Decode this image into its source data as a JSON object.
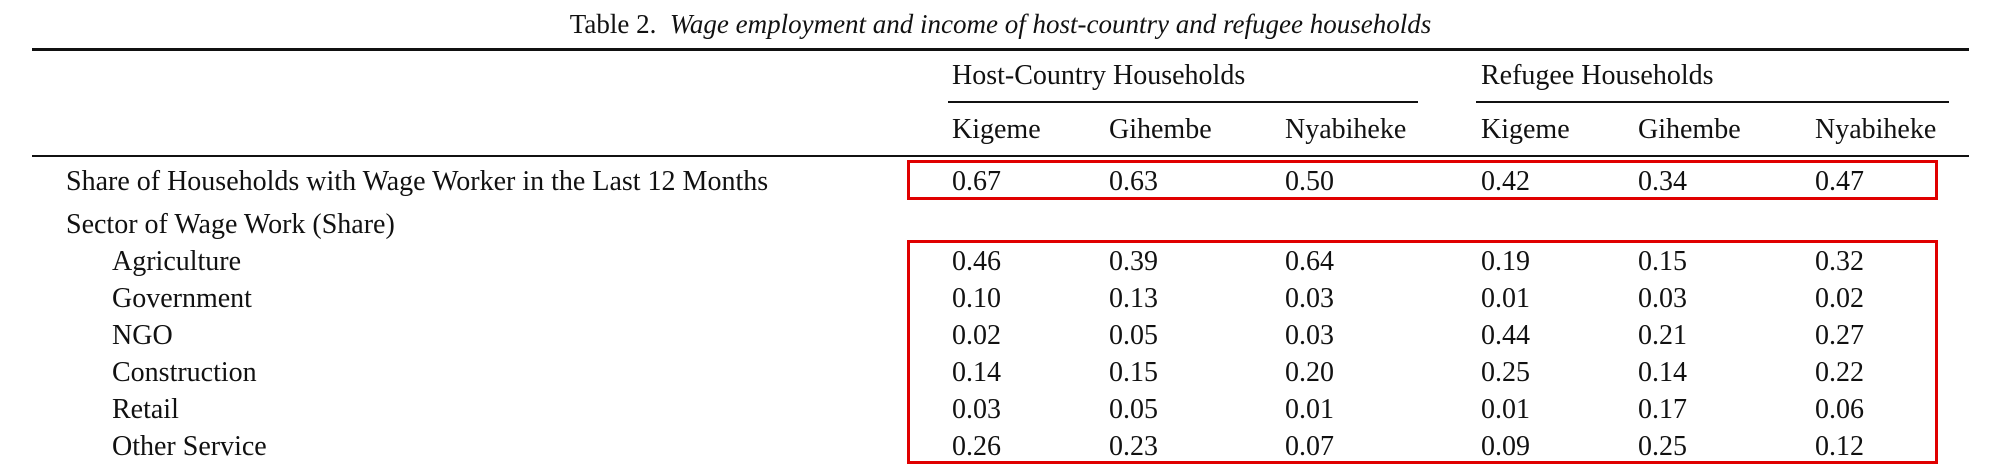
{
  "caption": {
    "label": "Table 2.",
    "title": "Wage employment and income of host-country and refugee households"
  },
  "table": {
    "groups": [
      "Host-Country Households",
      "Refugee Households"
    ],
    "columns": [
      "Kigeme",
      "Gihembe",
      "Nyabiheke",
      "Kigeme",
      "Gihembe",
      "Nyabiheke"
    ],
    "rows": [
      {
        "label": "Share of Households with Wage Worker in the Last 12 Months",
        "indent": false,
        "values": [
          "0.67",
          "0.63",
          "0.50",
          "0.42",
          "0.34",
          "0.47"
        ]
      },
      {
        "label": "Sector of Wage Work (Share)",
        "indent": false,
        "values": []
      },
      {
        "label": "Agriculture",
        "indent": true,
        "values": [
          "0.46",
          "0.39",
          "0.64",
          "0.19",
          "0.15",
          "0.32"
        ]
      },
      {
        "label": "Government",
        "indent": true,
        "values": [
          "0.10",
          "0.13",
          "0.03",
          "0.01",
          "0.03",
          "0.02"
        ]
      },
      {
        "label": "NGO",
        "indent": true,
        "values": [
          "0.02",
          "0.05",
          "0.03",
          "0.44",
          "0.21",
          "0.27"
        ]
      },
      {
        "label": "Construction",
        "indent": true,
        "values": [
          "0.14",
          "0.15",
          "0.20",
          "0.25",
          "0.14",
          "0.22"
        ]
      },
      {
        "label": "Retail",
        "indent": true,
        "values": [
          "0.03",
          "0.05",
          "0.01",
          "0.01",
          "0.17",
          "0.06"
        ]
      },
      {
        "label": "Other Service",
        "indent": true,
        "values": [
          "0.26",
          "0.23",
          "0.07",
          "0.09",
          "0.25",
          "0.12"
        ]
      }
    ]
  },
  "highlight_color": "#e00000"
}
